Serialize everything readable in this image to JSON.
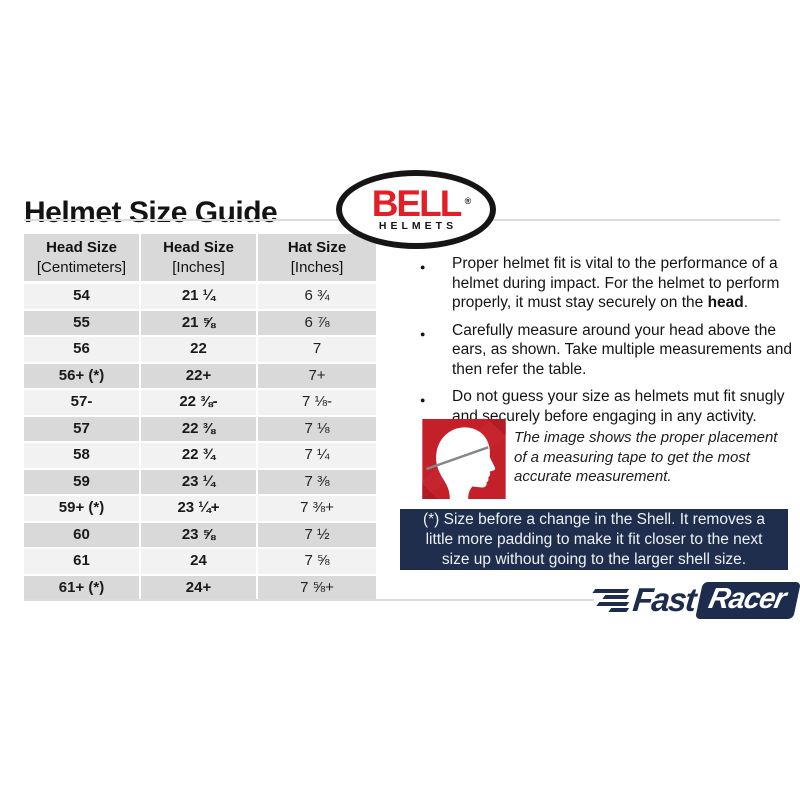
{
  "page": {
    "title": "Helmet Size Guide"
  },
  "bell_logo": {
    "brand": "BELL",
    "registered": "®",
    "sub": "HELMETS"
  },
  "table": {
    "headers": [
      {
        "line1": "Head Size",
        "line2": "[Centimeters]"
      },
      {
        "line1": "Head Size",
        "line2": "[Inches]"
      },
      {
        "line1": "Hat Size",
        "line2": "[Inches]"
      }
    ],
    "rows": [
      [
        "54",
        "21 ¼",
        "6 ¾"
      ],
      [
        "55",
        "21 ⅝",
        "6 ⅞"
      ],
      [
        "56",
        "22",
        "7"
      ],
      [
        "56+ (*)",
        "22+",
        "7+"
      ],
      [
        "57-",
        "22 ⅜-",
        "7 ⅛-"
      ],
      [
        "57",
        "22 ⅜",
        "7 ⅛"
      ],
      [
        "58",
        "22 ¾",
        "7 ¼"
      ],
      [
        "59",
        "23 ¼",
        "7 ⅜"
      ],
      [
        "59+ (*)",
        "23 ¼+",
        "7 ⅜+"
      ],
      [
        "60",
        "23 ⅝",
        "7 ½"
      ],
      [
        "61",
        "24",
        "7 ⅝"
      ],
      [
        "61+ (*)",
        "24+",
        "7 ⅝+"
      ]
    ]
  },
  "bullets": {
    "b1_pre": "Proper helmet fit is vital to the performance of a helmet during impact. For the helmet to perform properly, it must stay securely on the ",
    "b1_bold": "head",
    "b1_post": ".",
    "b2": "Carefully measure around your head above the ears, as shown. Take multiple measurements and then refer the table.",
    "b3": "Do not guess your size as helmets mut fit snugly and securely before engaging in any activity."
  },
  "figure": {
    "icon": "head-profile-with-measuring-tape",
    "caption": "The image shows the proper placement of a measuring tape to get the most accurate measurement."
  },
  "note": {
    "text": "(*) Size before a change in the Shell. It removes a little more padding to make it fit closer to the next size up without going to the larger shell size."
  },
  "fastracer_logo": {
    "fast": "Fast",
    "racer": "Racer"
  },
  "colors": {
    "bell_red": "#e21f26",
    "figure_red": "#c4202a",
    "navy": "#1f2e4c",
    "table_gray": "#d9d9d9",
    "table_light": "#f2f2f2"
  }
}
